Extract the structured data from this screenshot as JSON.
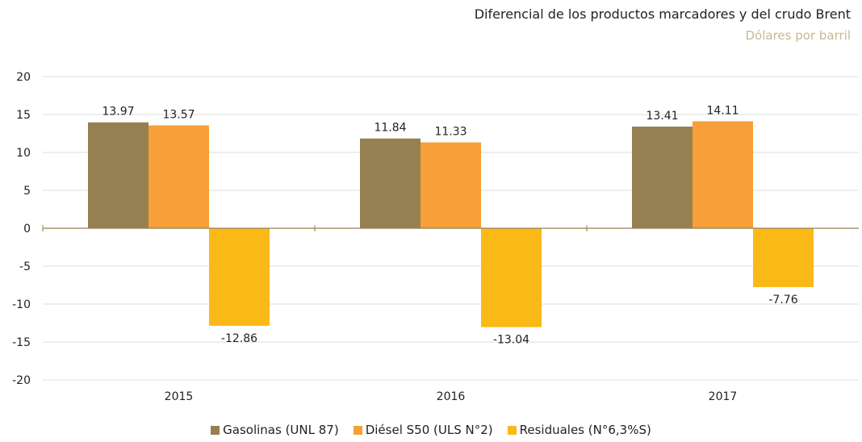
{
  "chart_data": {
    "type": "bar",
    "title": "Diferencial de los productos marcadores y del crudo Brent",
    "subtitle": "Dólares por barril",
    "categories": [
      "2015",
      "2016",
      "2017"
    ],
    "series": [
      {
        "name": "Gasolinas (UNL 87)",
        "values": [
          13.97,
          11.84,
          13.41
        ],
        "color": "#948051"
      },
      {
        "name": "Diésel S50 (ULS N°2)",
        "values": [
          13.57,
          11.33,
          14.11
        ],
        "color": "#f79f38"
      },
      {
        "name": "Residuales (N°6,3%S)",
        "values": [
          -12.86,
          -13.04,
          -7.76
        ],
        "color": "#fbb917"
      }
    ],
    "ylim": [
      -20,
      20
    ],
    "yticks": [
      20,
      15,
      10,
      5,
      0,
      -5,
      -10,
      -15,
      -20
    ],
    "grid": true,
    "legend_position": "bottom"
  }
}
